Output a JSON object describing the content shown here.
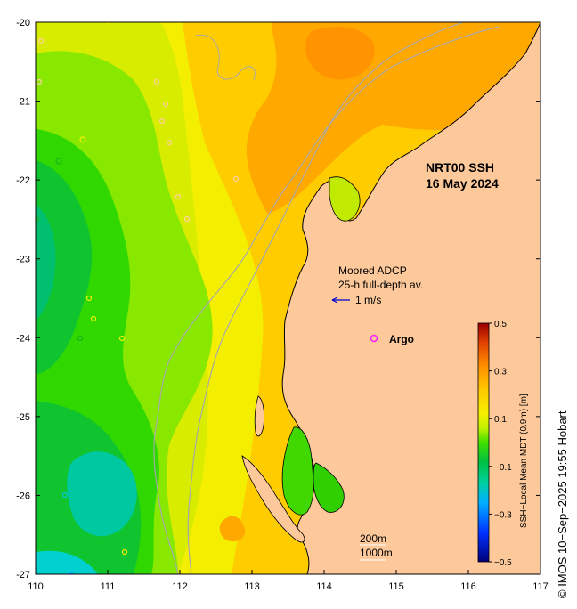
{
  "map": {
    "title_line1": "NRT00 SSH",
    "title_line2": "16 May 2024",
    "lon_ticks": [
      "110",
      "111",
      "112",
      "113",
      "114",
      "115",
      "116",
      "117"
    ],
    "lat_ticks": [
      "-20",
      "-21",
      "-22",
      "-23",
      "-24",
      "-25",
      "-26",
      "-27"
    ],
    "lon_range": [
      110,
      117
    ],
    "lat_range": [
      -27,
      -20
    ],
    "colors": {
      "land": "#fdc89a",
      "coastline": "#000000",
      "isobath": "#a8a8a8",
      "argo_marker": "#ff20ff",
      "velocity_arrow": "#0000cc"
    }
  },
  "legend": {
    "adcp_line1": "Moored ADCP",
    "adcp_line2": "25-h full-depth av.",
    "velocity_scale": "1 m/s",
    "argo_label": "Argo",
    "isobath_200": "200m",
    "isobath_1000": "1000m"
  },
  "colorbar": {
    "label": "SSH−Local Mean MDT (0.9m) [m]",
    "ticks": [
      "0.5",
      "0.3",
      "0.1",
      "−0.1",
      "−0.3",
      "−0.5"
    ],
    "range": [
      -0.5,
      0.5
    ]
  },
  "credit": "© IMOS 10−Sep−2025 19:55 Hobart"
}
